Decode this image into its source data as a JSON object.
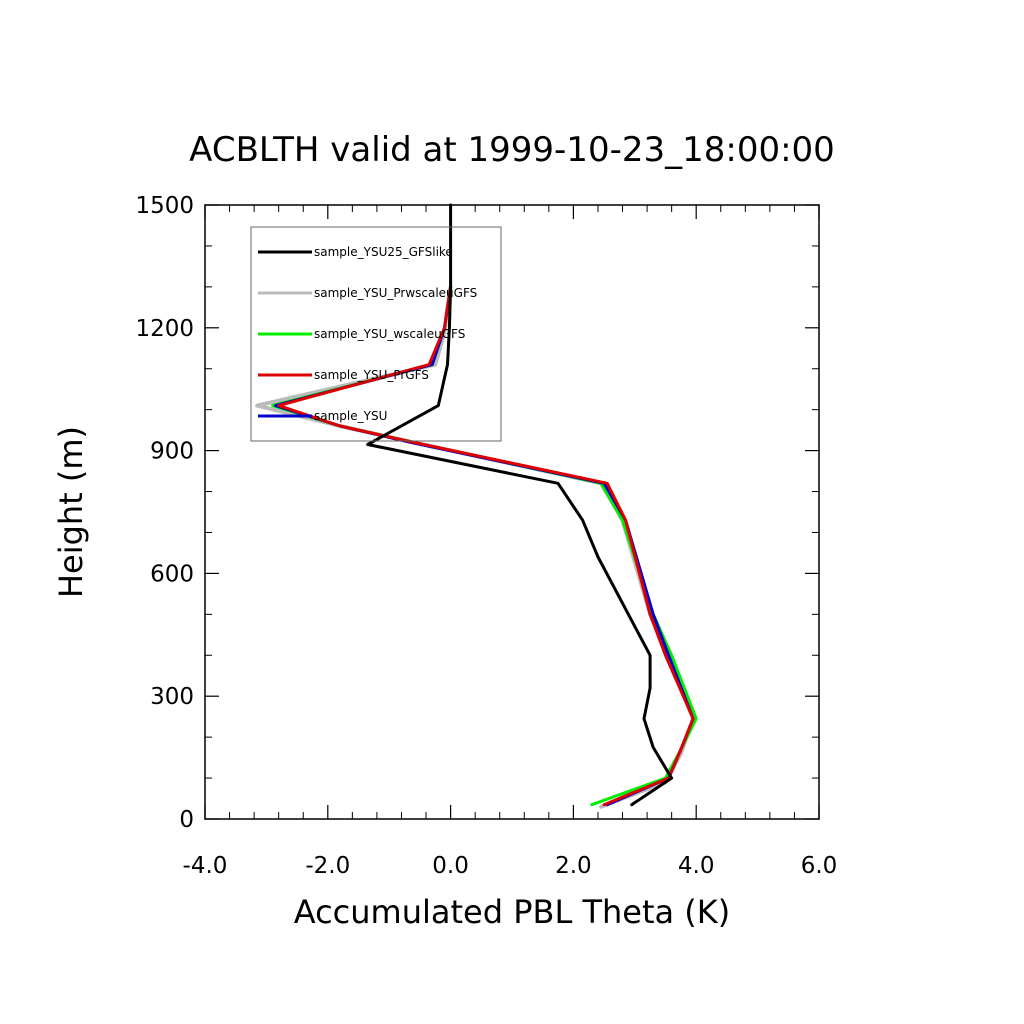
{
  "chart_data": {
    "type": "line",
    "title": "ACBLTH valid at 1999-10-23_18:00:00",
    "xlabel": "Accumulated PBL Theta (K)",
    "ylabel": "Height (m)",
    "xlim": [
      -4.0,
      6.0
    ],
    "ylim": [
      0,
      1500
    ],
    "xticks": [
      "-4.0",
      "-2.0",
      "0.0",
      "2.0",
      "4.0",
      "6.0"
    ],
    "yticks": [
      "0",
      "300",
      "600",
      "900",
      "1200",
      "1500"
    ],
    "xtick_values": [
      -4,
      -2,
      0,
      2,
      4,
      6
    ],
    "ytick_values": [
      0,
      300,
      600,
      900,
      1200,
      1500
    ],
    "x_minor_step": 0.4,
    "y_minor_step": 100,
    "grid": false,
    "legend_position": "top-left",
    "series": [
      {
        "name": "sample_YSU25_GFSlike",
        "color": "#000000",
        "points": [
          [
            2.95,
            35
          ],
          [
            3.4,
            80
          ],
          [
            3.6,
            100
          ],
          [
            3.3,
            175
          ],
          [
            3.15,
            245
          ],
          [
            3.25,
            320
          ],
          [
            3.25,
            400
          ],
          [
            2.4,
            640
          ],
          [
            2.15,
            730
          ],
          [
            1.75,
            820
          ],
          [
            -1.35,
            915
          ],
          [
            -0.2,
            1010
          ],
          [
            -0.05,
            1110
          ],
          [
            -0.02,
            1200
          ],
          [
            0.0,
            1300
          ],
          [
            0.0,
            1400
          ],
          [
            0.0,
            1500
          ]
        ]
      },
      {
        "name": "sample_YSU_PrwscaleuGFS",
        "color": "#bbbbbb",
        "points": [
          [
            2.45,
            30
          ],
          [
            3.5,
            90
          ],
          [
            3.75,
            160
          ],
          [
            3.95,
            245
          ],
          [
            3.55,
            400
          ],
          [
            3.25,
            500
          ],
          [
            2.8,
            730
          ],
          [
            2.45,
            820
          ],
          [
            -0.6,
            920
          ],
          [
            -1.8,
            960
          ],
          [
            -3.15,
            1010
          ],
          [
            -0.25,
            1110
          ],
          [
            -0.1,
            1190
          ],
          [
            -0.05,
            1250
          ],
          [
            0.0,
            1300
          ]
        ]
      },
      {
        "name": "sample_YSU_wscaleuGFS",
        "color": "#00ee00",
        "points": [
          [
            2.3,
            35
          ],
          [
            3.5,
            100
          ],
          [
            3.75,
            170
          ],
          [
            4.0,
            245
          ],
          [
            3.6,
            400
          ],
          [
            3.3,
            500
          ],
          [
            2.8,
            730
          ],
          [
            2.45,
            820
          ],
          [
            -0.6,
            920
          ],
          [
            -1.8,
            960
          ],
          [
            -2.9,
            1010
          ],
          [
            -0.3,
            1110
          ],
          [
            -0.1,
            1200
          ],
          [
            0.0,
            1300
          ]
        ]
      },
      {
        "name": "sample_YSU_PrGFS",
        "color": "#dd0000",
        "points": [
          [
            2.5,
            35
          ],
          [
            3.55,
            100
          ],
          [
            3.75,
            170
          ],
          [
            3.95,
            245
          ],
          [
            3.5,
            400
          ],
          [
            3.25,
            500
          ],
          [
            2.85,
            730
          ],
          [
            2.55,
            820
          ],
          [
            -0.6,
            920
          ],
          [
            -1.8,
            960
          ],
          [
            -2.8,
            1010
          ],
          [
            -0.35,
            1110
          ],
          [
            -0.1,
            1200
          ],
          [
            0.0,
            1300
          ]
        ]
      },
      {
        "name": "sample_YSU",
        "color": "#0000cc",
        "points": [
          [
            2.55,
            35
          ],
          [
            3.55,
            100
          ],
          [
            3.75,
            170
          ],
          [
            3.95,
            245
          ],
          [
            3.55,
            400
          ],
          [
            3.3,
            500
          ],
          [
            2.85,
            730
          ],
          [
            2.5,
            820
          ],
          [
            -0.65,
            920
          ],
          [
            -1.8,
            960
          ],
          [
            -2.85,
            1010
          ],
          [
            -0.3,
            1110
          ],
          [
            -0.1,
            1200
          ],
          [
            0.0,
            1300
          ]
        ]
      }
    ]
  }
}
